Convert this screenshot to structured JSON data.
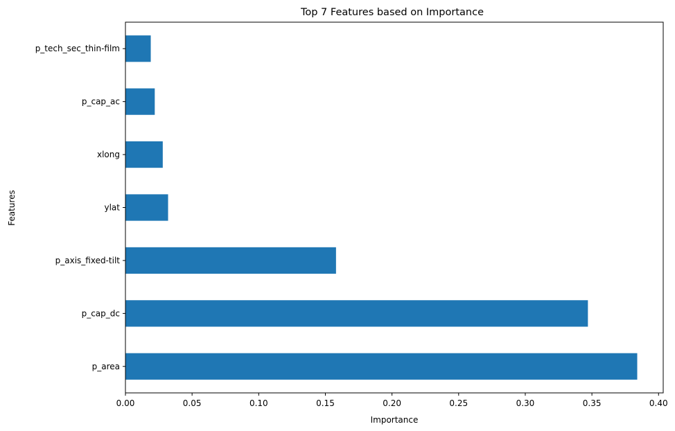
{
  "chart_data": {
    "type": "bar",
    "orientation": "horizontal",
    "title": "Top 7 Features based on Importance",
    "xlabel": "Importance",
    "ylabel": "Features",
    "categories": [
      "p_area",
      "p_cap_dc",
      "p_axis_fixed-tilt",
      "ylat",
      "xlong",
      "p_cap_ac",
      "p_tech_sec_thin-film"
    ],
    "values": [
      0.384,
      0.347,
      0.158,
      0.032,
      0.028,
      0.022,
      0.019
    ],
    "xlim": [
      0,
      0.4035
    ],
    "xticks": [
      0.0,
      0.05,
      0.1,
      0.15,
      0.2,
      0.25,
      0.3,
      0.35,
      0.4
    ],
    "xtick_labels": [
      "0.00",
      "0.05",
      "0.10",
      "0.15",
      "0.20",
      "0.25",
      "0.30",
      "0.35",
      "0.40"
    ],
    "bar_color": "#1f77b4",
    "grid": false,
    "legend": "none"
  }
}
